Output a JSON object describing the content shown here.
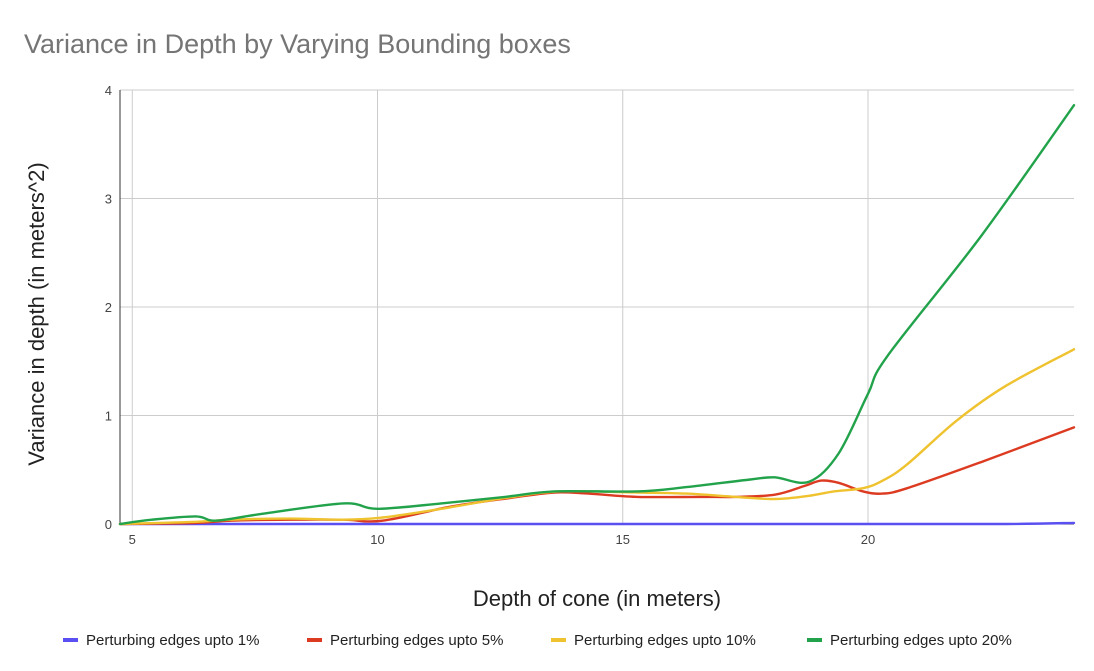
{
  "chart_data": {
    "type": "line",
    "title": "Variance in Depth by Varying Bounding boxes",
    "xlabel": "Depth of cone (in meters)",
    "ylabel": "Variance in depth (in meters^2)",
    "xlim": [
      4.75,
      24.2
    ],
    "ylim": [
      0,
      4
    ],
    "x_ticks": [
      5,
      10,
      15,
      20
    ],
    "y_ticks": [
      0,
      1,
      2,
      3,
      4
    ],
    "grid": true,
    "legend_position": "bottom",
    "series": [
      {
        "name": "Perturbing edges upto 1%",
        "color": "#5a4ff0",
        "points": [
          [
            4.75,
            0.0
          ],
          [
            10,
            0.0
          ],
          [
            15,
            0.0
          ],
          [
            20,
            0.0
          ],
          [
            22.8,
            0.0
          ],
          [
            24.2,
            0.01
          ]
        ]
      },
      {
        "name": "Perturbing edges upto 5%",
        "color": "#dc3b22",
        "points": [
          [
            4.75,
            0.0
          ],
          [
            6.3,
            0.01
          ],
          [
            7,
            0.03
          ],
          [
            8.2,
            0.04
          ],
          [
            9.3,
            0.04
          ],
          [
            10.1,
            0.03
          ],
          [
            11.5,
            0.16
          ],
          [
            12.7,
            0.24
          ],
          [
            13.6,
            0.29
          ],
          [
            14.3,
            0.28
          ],
          [
            15.3,
            0.25
          ],
          [
            16.6,
            0.25
          ],
          [
            17.3,
            0.25
          ],
          [
            18.1,
            0.27
          ],
          [
            18.7,
            0.35
          ],
          [
            19.05,
            0.4
          ],
          [
            19.4,
            0.38
          ],
          [
            19.9,
            0.3
          ],
          [
            20.3,
            0.28
          ],
          [
            20.8,
            0.33
          ],
          [
            22.3,
            0.57
          ],
          [
            24.2,
            0.89
          ]
        ]
      },
      {
        "name": "Perturbing edges upto 10%",
        "color": "#efc22f",
        "points": [
          [
            4.75,
            0.0
          ],
          [
            6.3,
            0.02
          ],
          [
            7,
            0.04
          ],
          [
            8.2,
            0.05
          ],
          [
            9.3,
            0.04
          ],
          [
            10.1,
            0.06
          ],
          [
            11.3,
            0.14
          ],
          [
            12.6,
            0.24
          ],
          [
            13.7,
            0.3
          ],
          [
            15.3,
            0.29
          ],
          [
            16.3,
            0.28
          ],
          [
            17.3,
            0.25
          ],
          [
            18.1,
            0.23
          ],
          [
            18.8,
            0.26
          ],
          [
            19.3,
            0.3
          ],
          [
            19.9,
            0.33
          ],
          [
            20.3,
            0.4
          ],
          [
            20.8,
            0.55
          ],
          [
            21.8,
            0.95
          ],
          [
            22.8,
            1.27
          ],
          [
            24.2,
            1.61
          ]
        ]
      },
      {
        "name": "Perturbing edges upto 20%",
        "color": "#22a34b",
        "points": [
          [
            4.75,
            0.0
          ],
          [
            5.4,
            0.04
          ],
          [
            6.3,
            0.07
          ],
          [
            6.7,
            0.03
          ],
          [
            7.6,
            0.09
          ],
          [
            9.3,
            0.19
          ],
          [
            10,
            0.14
          ],
          [
            11.3,
            0.19
          ],
          [
            12.6,
            0.25
          ],
          [
            13.6,
            0.3
          ],
          [
            15.3,
            0.3
          ],
          [
            16.3,
            0.34
          ],
          [
            17.6,
            0.41
          ],
          [
            18.1,
            0.43
          ],
          [
            18.8,
            0.39
          ],
          [
            19.4,
            0.65
          ],
          [
            20,
            1.2
          ],
          [
            20.4,
            1.55
          ],
          [
            22.3,
            2.65
          ],
          [
            24.2,
            3.86
          ]
        ]
      }
    ]
  }
}
